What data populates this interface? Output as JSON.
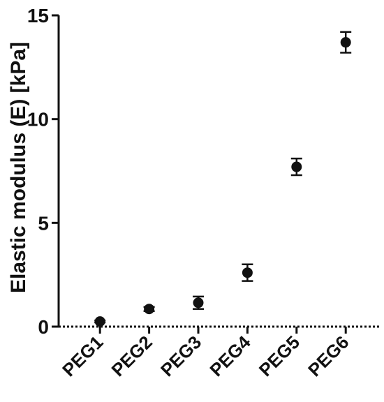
{
  "chart_data": {
    "type": "scatter",
    "y_label": "Elastic modulus (E) [kPa]",
    "categories": [
      "PEG1",
      "PEG2",
      "PEG3",
      "PEG4",
      "PEG5",
      "PEG6"
    ],
    "values": [
      0.25,
      0.85,
      1.15,
      2.6,
      7.7,
      13.7
    ],
    "errors": [
      0.05,
      0.1,
      0.3,
      0.4,
      0.4,
      0.5
    ],
    "color": "#111111",
    "ylim": [
      0,
      15
    ],
    "yticks": [
      0,
      5,
      10,
      15
    ],
    "grid": false
  }
}
